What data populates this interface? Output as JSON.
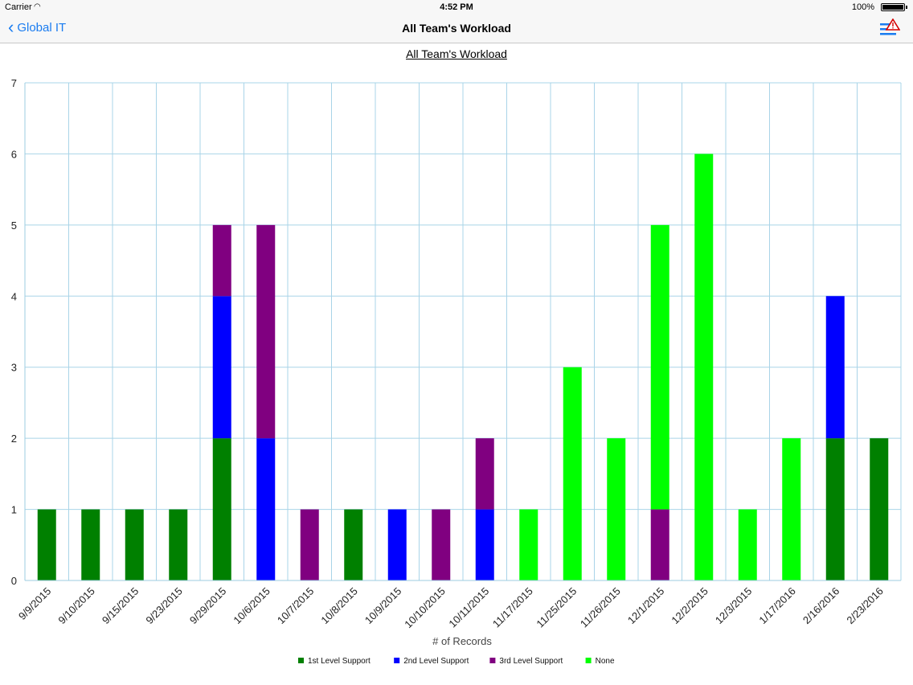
{
  "status": {
    "carrier": "Carrier",
    "time": "4:52 PM",
    "battery": "100%"
  },
  "nav": {
    "back_label": "Global IT",
    "title": "All Team's Workload"
  },
  "chart_data": {
    "type": "bar",
    "stacked": true,
    "title": "All Team's Workload",
    "xlabel": "# of Records",
    "ylabel": "",
    "ylim": [
      0,
      7
    ],
    "yticks": [
      0,
      1,
      2,
      3,
      4,
      5,
      6,
      7
    ],
    "grid": true,
    "legend_position": "bottom",
    "categories": [
      "9/9/2015",
      "9/10/2015",
      "9/15/2015",
      "9/23/2015",
      "9/29/2015",
      "10/6/2015",
      "10/7/2015",
      "10/8/2015",
      "10/9/2015",
      "10/10/2015",
      "10/11/2015",
      "11/17/2015",
      "11/25/2015",
      "11/26/2015",
      "12/1/2015",
      "12/2/2015",
      "12/3/2015",
      "1/17/2016",
      "2/16/2016",
      "2/23/2016"
    ],
    "series": [
      {
        "name": "1st Level Support",
        "color": "#008000",
        "values": [
          1,
          1,
          1,
          1,
          2,
          0,
          0,
          1,
          0,
          0,
          0,
          0,
          0,
          0,
          0,
          0,
          0,
          0,
          2,
          2
        ]
      },
      {
        "name": "2nd Level Support",
        "color": "#0000ff",
        "values": [
          0,
          0,
          0,
          0,
          2,
          2,
          0,
          0,
          1,
          0,
          1,
          0,
          0,
          0,
          0,
          0,
          0,
          0,
          2,
          0
        ]
      },
      {
        "name": "3rd Level Support",
        "color": "#800080",
        "values": [
          0,
          0,
          0,
          0,
          1,
          3,
          1,
          0,
          0,
          1,
          1,
          0,
          0,
          0,
          1,
          0,
          0,
          0,
          0,
          0
        ]
      },
      {
        "name": "None",
        "color": "#00ff00",
        "values": [
          0,
          0,
          0,
          0,
          0,
          0,
          0,
          0,
          0,
          0,
          0,
          1,
          3,
          2,
          4,
          6,
          1,
          2,
          0,
          0
        ]
      }
    ]
  }
}
